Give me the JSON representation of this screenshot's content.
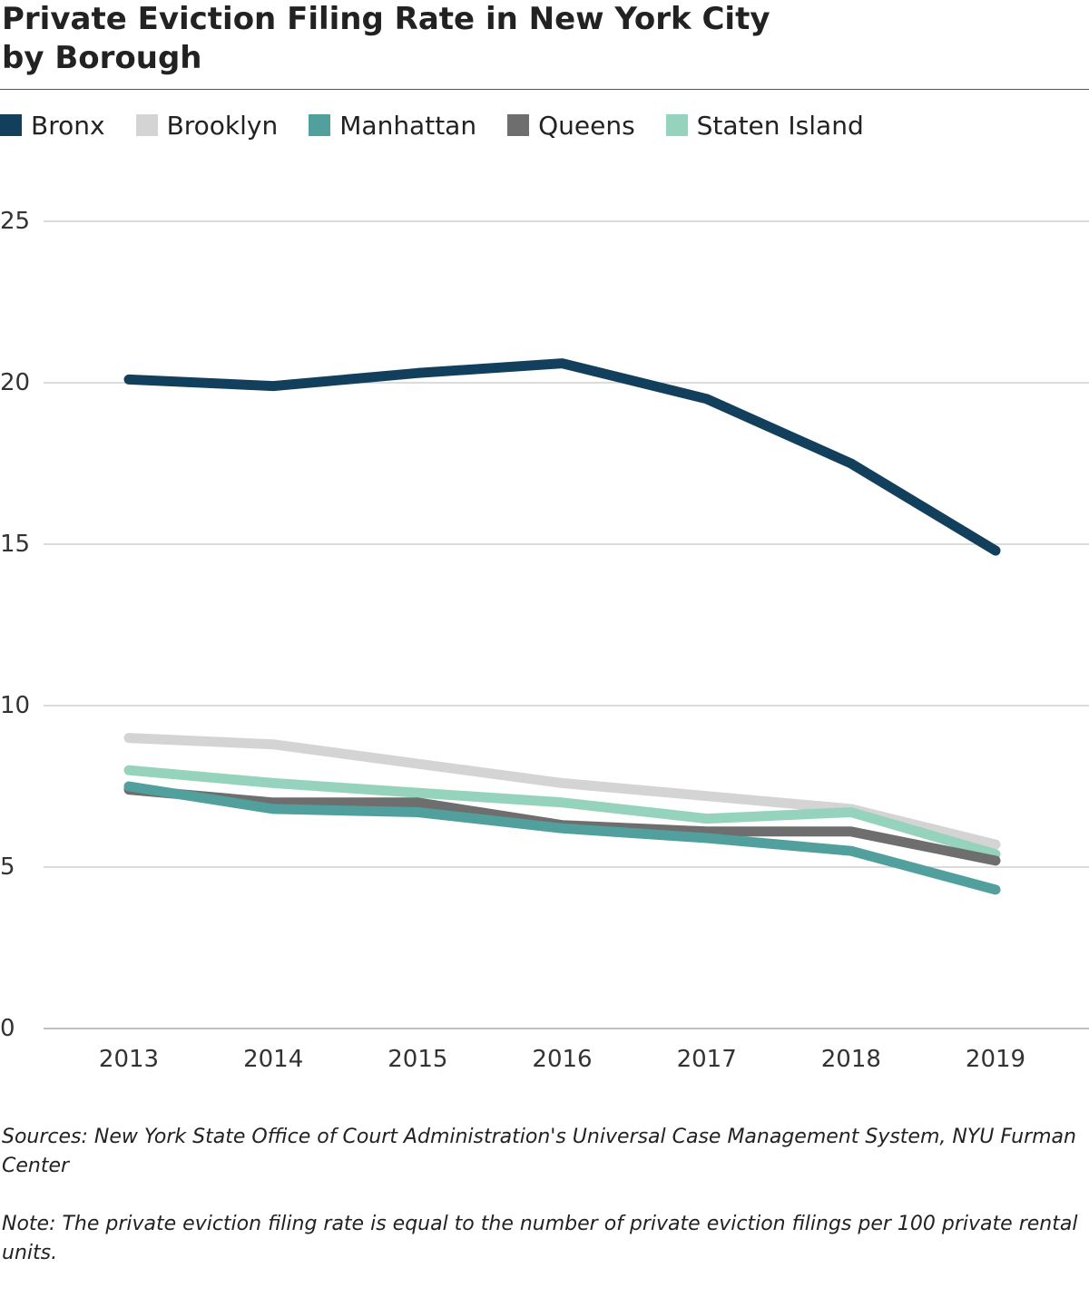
{
  "title_lines": [
    "Private Eviction Filing Rate in New York City",
    "by Borough"
  ],
  "legend": [
    {
      "name": "Bronx",
      "color": "#12405c"
    },
    {
      "name": "Brooklyn",
      "color": "#d4d4d4"
    },
    {
      "name": "Manhattan",
      "color": "#52a09e"
    },
    {
      "name": "Queens",
      "color": "#6e6e6e"
    },
    {
      "name": "Staten Island",
      "color": "#95d3bd"
    }
  ],
  "sources": "Sources: New York State Office of Court Administration's Universal Case Management System, NYU Furman Center",
  "note": "Note: The private eviction filing rate is equal to the number of private eviction filings per 100 private rental units.",
  "chart_data": {
    "type": "line",
    "title": "Private Eviction Filing Rate in New York City by Borough",
    "xlabel": "",
    "ylabel": "",
    "x": [
      "2013",
      "2014",
      "2015",
      "2016",
      "2017",
      "2018",
      "2019"
    ],
    "ylim": [
      0,
      25
    ],
    "yticks": [
      0,
      5,
      10,
      15,
      20,
      25
    ],
    "grid": true,
    "legend_position": "top-left",
    "series": [
      {
        "name": "Brooklyn",
        "color": "#d4d4d4",
        "values": [
          9.0,
          8.8,
          8.2,
          7.6,
          7.2,
          6.8,
          5.7
        ]
      },
      {
        "name": "Staten Island",
        "color": "#95d3bd",
        "values": [
          8.0,
          7.6,
          7.3,
          7.0,
          6.5,
          6.7,
          5.4
        ]
      },
      {
        "name": "Queens",
        "color": "#6e6e6e",
        "values": [
          7.4,
          7.0,
          7.0,
          6.3,
          6.1,
          6.1,
          5.2
        ]
      },
      {
        "name": "Manhattan",
        "color": "#52a09e",
        "values": [
          7.5,
          6.8,
          6.7,
          6.2,
          5.9,
          5.5,
          4.3
        ]
      },
      {
        "name": "Bronx",
        "color": "#12405c",
        "values": [
          20.1,
          19.9,
          20.3,
          20.6,
          19.5,
          17.5,
          14.8
        ]
      }
    ]
  }
}
